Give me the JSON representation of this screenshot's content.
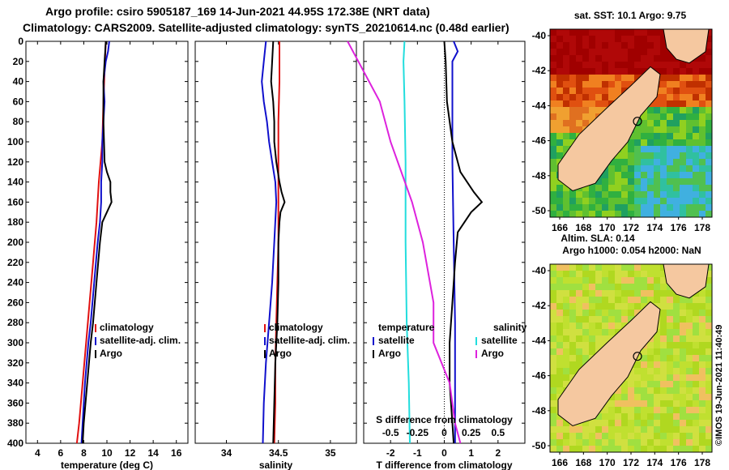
{
  "title": {
    "line1": "Argo profile: csiro 5905187_169 14-Jun-2021 44.95S 172.38E (NRT data)",
    "line2": "Climatology: CARS2009. Satellite-adjusted climatology: synTS_20210614.nc (0.48d earlier)"
  },
  "credit": "©IMOS 19-Jun-2021 11:40:49",
  "colors": {
    "climatology": "#e01010",
    "satellite_adj": "#1010cc",
    "argo": "#000000",
    "s_satellite": "#22dddd",
    "s_argo": "#dd22dd"
  },
  "chart_data": [
    {
      "type": "line",
      "panel": "temperature",
      "xlabel": "temperature (deg C)",
      "xlim": [
        3,
        17
      ],
      "xticks": [
        4,
        6,
        8,
        10,
        12,
        14,
        16
      ],
      "ylim": [
        400,
        0
      ],
      "yticks": [
        0,
        20,
        40,
        60,
        80,
        100,
        120,
        140,
        160,
        180,
        200,
        220,
        240,
        260,
        280,
        300,
        320,
        340,
        360,
        380,
        400
      ],
      "legend": [
        "climatology",
        "satellite-adj. clim.",
        "Argo"
      ],
      "series": [
        {
          "name": "climatology",
          "color": "#e01010",
          "depth": [
            0,
            30,
            60,
            100,
            140,
            180,
            220,
            260,
            300,
            340,
            380,
            400
          ],
          "values": [
            9.9,
            9.8,
            9.7,
            9.6,
            9.3,
            9.1,
            8.8,
            8.5,
            8.2,
            7.9,
            7.6,
            7.4
          ]
        },
        {
          "name": "satellite-adj. clim.",
          "color": "#1010cc",
          "depth": [
            0,
            10,
            20,
            40,
            60,
            80,
            100,
            120,
            140,
            160,
            180,
            200,
            240,
            280,
            300,
            340,
            380,
            400
          ],
          "values": [
            10.2,
            10.1,
            9.9,
            9.7,
            9.8,
            9.7,
            9.6,
            9.6,
            9.5,
            9.5,
            9.4,
            9.2,
            8.9,
            8.6,
            8.4,
            8.1,
            7.9,
            7.8
          ]
        },
        {
          "name": "Argo",
          "color": "#000000",
          "depth": [
            0,
            10,
            20,
            40,
            60,
            80,
            100,
            120,
            130,
            140,
            150,
            160,
            170,
            180,
            200,
            240,
            280,
            300,
            340,
            380,
            400
          ],
          "values": [
            9.9,
            9.85,
            9.8,
            9.7,
            9.7,
            9.7,
            9.75,
            9.8,
            10.0,
            10.3,
            10.3,
            10.4,
            10.0,
            9.6,
            9.4,
            9.1,
            8.8,
            8.6,
            8.3,
            8.0,
            7.9
          ]
        }
      ]
    },
    {
      "type": "line",
      "panel": "salinity",
      "xlabel": "salinity",
      "xlim": [
        33.7,
        35.25
      ],
      "xticks": [
        34,
        34.5,
        35
      ],
      "xticklabels": [
        "34",
        "34.5",
        "35"
      ],
      "ylim": [
        400,
        0
      ],
      "legend": [
        "climatology",
        "satellite-adj. clim.",
        "Argo"
      ],
      "series": [
        {
          "name": "climatology",
          "color": "#e01010",
          "depth": [
            0,
            40,
            80,
            120,
            160,
            200,
            240,
            280,
            320,
            360,
            400
          ],
          "values": [
            34.51,
            34.51,
            34.5,
            34.5,
            34.5,
            34.5,
            34.49,
            34.48,
            34.47,
            34.47,
            34.46
          ]
        },
        {
          "name": "satellite-adj. clim.",
          "color": "#1010cc",
          "depth": [
            0,
            20,
            40,
            60,
            80,
            100,
            120,
            140,
            160,
            200,
            240,
            280,
            320,
            360,
            400
          ],
          "values": [
            34.38,
            34.36,
            34.34,
            34.36,
            34.39,
            34.41,
            34.44,
            34.47,
            34.48,
            34.46,
            34.44,
            34.41,
            34.38,
            34.36,
            34.35
          ]
        },
        {
          "name": "Argo",
          "color": "#000000",
          "depth": [
            0,
            20,
            40,
            60,
            80,
            100,
            120,
            140,
            150,
            160,
            170,
            180,
            200,
            240,
            280,
            320,
            360,
            400
          ],
          "values": [
            34.45,
            34.44,
            34.43,
            34.45,
            34.46,
            34.46,
            34.48,
            34.51,
            34.53,
            34.56,
            34.52,
            34.51,
            34.5,
            34.5,
            34.49,
            34.47,
            34.46,
            34.45
          ]
        }
      ]
    },
    {
      "type": "line",
      "panel": "difference",
      "xlabel": "T difference from climatology",
      "xlabel_top": "S difference from climatology",
      "xlim": [
        -3,
        3
      ],
      "xticks": [
        -2,
        -1,
        0,
        1,
        2
      ],
      "top_tick_values": [
        -0.5,
        -0.25,
        0,
        0.25,
        0.5
      ],
      "top_tick_labels": [
        "-0.5",
        "-0.25",
        "0",
        "0.25",
        "0.5"
      ],
      "ylim": [
        400,
        0
      ],
      "legend_temperature_title": "temperature",
      "legend_salinity_title": "salinity",
      "legend_temperature": [
        "satellite",
        "Argo"
      ],
      "legend_salinity": [
        "satellite",
        "Argo"
      ],
      "series": [
        {
          "name": "T satellite",
          "color": "#1010cc",
          "depth": [
            0,
            10,
            20,
            60,
            120,
            200,
            280,
            340,
            400
          ],
          "values": [
            0.35,
            0.5,
            0.3,
            0.3,
            0.3,
            0.35,
            0.4,
            0.4,
            0.4
          ]
        },
        {
          "name": "T Argo",
          "color": "#000000",
          "depth": [
            0,
            20,
            60,
            100,
            130,
            150,
            160,
            170,
            190,
            220,
            260,
            300,
            340,
            380,
            400
          ],
          "values": [
            0.0,
            0.05,
            0.1,
            0.3,
            0.6,
            1.1,
            1.4,
            1.0,
            0.5,
            0.4,
            0.3,
            0.2,
            0.2,
            0.3,
            0.35
          ]
        },
        {
          "name": "S satellite",
          "color": "#22dddd",
          "depth": [
            0,
            20,
            60,
            120,
            200,
            280,
            340,
            400
          ],
          "values": [
            -0.37,
            -0.38,
            -0.37,
            -0.36,
            -0.36,
            -0.35,
            -0.33,
            -0.32
          ]
        },
        {
          "name": "S Argo",
          "color": "#dd22dd",
          "depth": [
            0,
            20,
            60,
            100,
            160,
            200,
            260,
            300,
            340,
            380,
            400
          ],
          "values": [
            -0.9,
            -0.8,
            -0.6,
            -0.5,
            -0.3,
            -0.2,
            -0.1,
            -0.1,
            0.05,
            0.1,
            0.15
          ]
        }
      ]
    }
  ],
  "maps": [
    {
      "title": "sat. SST: 10.1 Argo: 9.75",
      "lat_ticks": [
        "-40",
        "-42",
        "-44",
        "-46",
        "-48",
        "-50"
      ],
      "lon_ticks": [
        "166",
        "168",
        "170",
        "172",
        "174",
        "176",
        "178"
      ]
    },
    {
      "title_line1": "Altim. SLA: 0.14",
      "title_line2": "Argo h1000: 0.054 h2000: NaN",
      "lat_ticks": [
        "-40",
        "-42",
        "-44",
        "-46",
        "-48",
        "-50"
      ],
      "lon_ticks": [
        "166",
        "168",
        "170",
        "172",
        "174",
        "176",
        "178"
      ]
    }
  ]
}
